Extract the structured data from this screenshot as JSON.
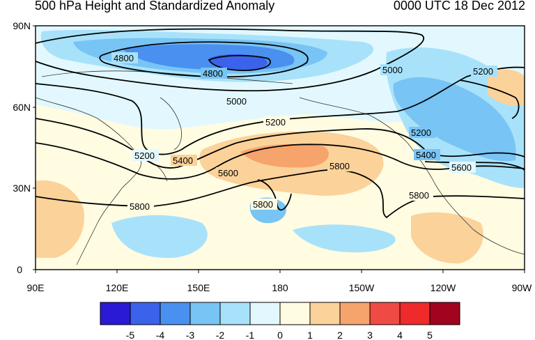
{
  "title": "500 hPa Height and Standardized Anomaly",
  "datetime": "0000 UTC 18 Dec 2012",
  "lat_ticks": [
    "90N",
    "60N",
    "30N",
    "0"
  ],
  "lon_ticks": [
    "90E",
    "120E",
    "150E",
    "180",
    "150W",
    "120W",
    "90W"
  ],
  "contour_labels": [
    "4800",
    "4800",
    "5000",
    "5000",
    "5200",
    "5200",
    "5200",
    "5400",
    "5400",
    "5600",
    "5600",
    "5800",
    "5800",
    "5800",
    "5800",
    "5800",
    "5200",
    "5200"
  ],
  "colorbar": {
    "labels": [
      "-5",
      "-4",
      "-3",
      "-2",
      "-1",
      "0",
      "1",
      "2",
      "3",
      "4",
      "5"
    ],
    "colors": [
      "#2a1ad6",
      "#3a62ea",
      "#4a90f0",
      "#78c4f4",
      "#a8e2fa",
      "#e2f8fe",
      "#fffce2",
      "#fbd29a",
      "#f6a46c",
      "#f04a44",
      "#ee2a2a",
      "#a0041e"
    ]
  }
}
